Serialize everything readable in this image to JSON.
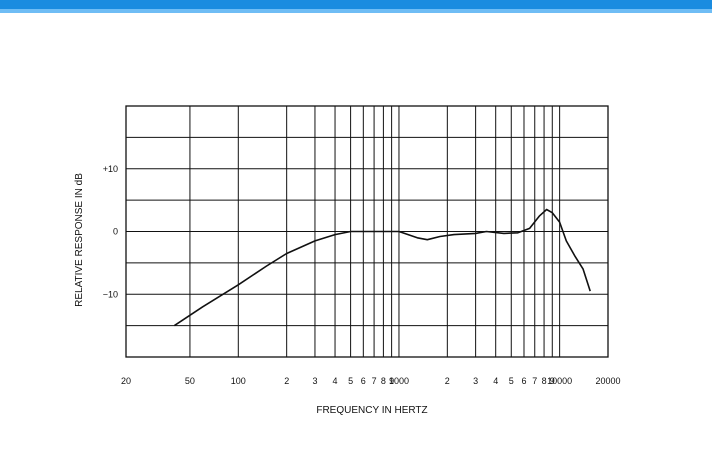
{
  "colors": {
    "top_bar": "#1a8ce0",
    "grid": "#111111",
    "curve": "#111111"
  },
  "chart_data": {
    "type": "line",
    "xlabel": "FREQUENCY IN HERTZ",
    "ylabel": "RELATIVE RESPONSE IN dB",
    "x_scale": "log",
    "xlim": [
      20,
      20000
    ],
    "ylim": [
      -20,
      20
    ],
    "grid": true,
    "x_tick_labels": [
      {
        "value": 20,
        "label": "20"
      },
      {
        "value": 50,
        "label": "50"
      },
      {
        "value": 100,
        "label": "100"
      },
      {
        "value": 200,
        "label": "2"
      },
      {
        "value": 300,
        "label": "3"
      },
      {
        "value": 400,
        "label": "4"
      },
      {
        "value": 500,
        "label": "5"
      },
      {
        "value": 600,
        "label": "6"
      },
      {
        "value": 700,
        "label": "7"
      },
      {
        "value": 800,
        "label": "8"
      },
      {
        "value": 900,
        "label": "9"
      },
      {
        "value": 1000,
        "label": "1000"
      },
      {
        "value": 2000,
        "label": "2"
      },
      {
        "value": 3000,
        "label": "3"
      },
      {
        "value": 4000,
        "label": "4"
      },
      {
        "value": 5000,
        "label": "5"
      },
      {
        "value": 6000,
        "label": "6"
      },
      {
        "value": 7000,
        "label": "7"
      },
      {
        "value": 8000,
        "label": "8"
      },
      {
        "value": 9000,
        "label": "9"
      },
      {
        "value": 10000,
        "label": "10000"
      },
      {
        "value": 20000,
        "label": "20000"
      }
    ],
    "y_tick_labels": [
      {
        "value": 10,
        "label": "+10"
      },
      {
        "value": 0,
        "label": "0"
      },
      {
        "value": -10,
        "label": "−10"
      }
    ],
    "x_gridlines": [
      50,
      100,
      200,
      300,
      400,
      500,
      600,
      700,
      800,
      900,
      1000,
      2000,
      3000,
      4000,
      5000,
      6000,
      7000,
      8000,
      9000,
      10000
    ],
    "y_gridlines": [
      -15,
      -10,
      -5,
      0,
      5,
      10,
      15
    ],
    "series": [
      {
        "points": [
          [
            40,
            -15
          ],
          [
            60,
            -12
          ],
          [
            100,
            -8.5
          ],
          [
            150,
            -5.5
          ],
          [
            200,
            -3.5
          ],
          [
            300,
            -1.5
          ],
          [
            400,
            -0.5
          ],
          [
            500,
            0
          ],
          [
            700,
            0
          ],
          [
            1000,
            0
          ],
          [
            1300,
            -1
          ],
          [
            1500,
            -1.3
          ],
          [
            1800,
            -0.8
          ],
          [
            2200,
            -0.5
          ],
          [
            3000,
            -0.3
          ],
          [
            3500,
            0
          ],
          [
            4500,
            -0.3
          ],
          [
            5500,
            -0.2
          ],
          [
            6500,
            0.5
          ],
          [
            7500,
            2.5
          ],
          [
            8300,
            3.5
          ],
          [
            9000,
            3.0
          ],
          [
            10000,
            1.5
          ],
          [
            11000,
            -1.5
          ],
          [
            12500,
            -4
          ],
          [
            14000,
            -6
          ],
          [
            15500,
            -9.5
          ]
        ]
      }
    ]
  }
}
